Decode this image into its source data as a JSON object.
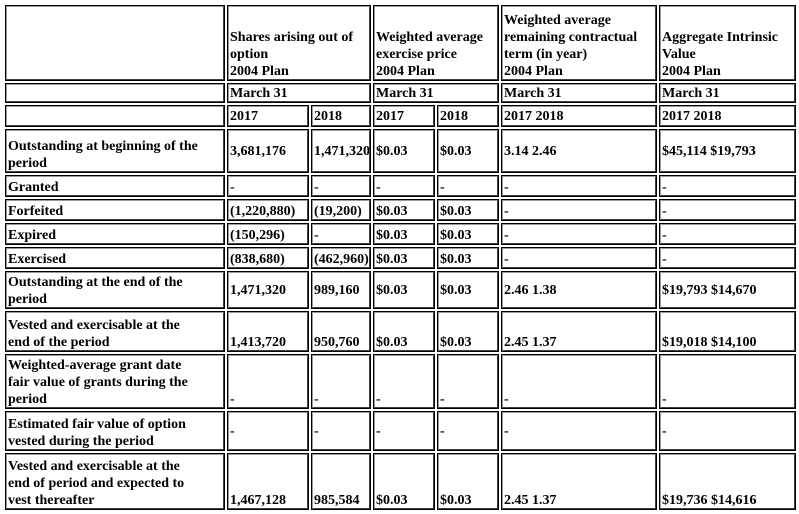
{
  "header": {
    "shares": [
      "Shares arising out of",
      "option",
      "2004 Plan"
    ],
    "price": [
      "Weighted average",
      "exercise price",
      "2004 Plan"
    ],
    "term": [
      "Weighted average",
      "remaining contractual",
      "term (in year)",
      "2004 Plan"
    ],
    "intrinsic": [
      "Aggregate Intrinsic",
      "Value",
      "2004 Plan"
    ]
  },
  "date_label": "March 31",
  "years": {
    "y2017": "2017",
    "y2018": "2018",
    "both": "2017 2018"
  },
  "rows": [
    {
      "label": [
        "Outstanding at beginning of the",
        "period"
      ],
      "s17": "3,681,176",
      "s18": "1,471,320",
      "p17": "$0.03",
      "p18": "$0.03",
      "term": "3.14 2.46",
      "intrinsic": "$45,114 $19,793"
    },
    {
      "label": [
        "Granted"
      ],
      "s17": "-",
      "s18": "-",
      "p17": "-",
      "p18": "-",
      "term": "-",
      "intrinsic": "-"
    },
    {
      "label": [
        "Forfeited"
      ],
      "s17": "(1,220,880)",
      "s18": "(19,200)",
      "p17": "$0.03",
      "p18": "$0.03",
      "term": "-",
      "intrinsic": "-"
    },
    {
      "label": [
        "Expired"
      ],
      "s17": "(150,296)",
      "s18": "-",
      "p17": "$0.03",
      "p18": "$0.03",
      "term": "-",
      "intrinsic": "-"
    },
    {
      "label": [
        "Exercised"
      ],
      "s17": "(838,680)",
      "s18": "(462,960)",
      "p17": "$0.03",
      "p18": "$0.03",
      "term": "-",
      "intrinsic": "-"
    },
    {
      "label": [
        "Outstanding at the end of the",
        "period"
      ],
      "s17": "1,471,320",
      "s18": "989,160",
      "p17": "$0.03",
      "p18": "$0.03",
      "term": "2.46 1.38",
      "intrinsic": "$19,793 $14,670"
    },
    {
      "label": [
        "Vested and exercisable at the",
        "end of the period"
      ],
      "s17": "1,413,720",
      "s18": "950,760",
      "p17": "$0.03",
      "p18": "$0.03",
      "term": "2.45 1.37",
      "intrinsic": "$19,018 $14,100"
    },
    {
      "label": [
        "Weighted-average grant date",
        "fair value of grants during the",
        "period"
      ],
      "s17": "-",
      "s18": "-",
      "p17": "-",
      "p18": "-",
      "term": "-",
      "intrinsic": "-"
    },
    {
      "label": [
        "Estimated fair value of option",
        "vested during the period"
      ],
      "s17": "-",
      "s18": "-",
      "p17": "-",
      "p18": "-",
      "term": "-",
      "intrinsic": "-"
    },
    {
      "label": [
        "Vested and exercisable at the",
        "end of period and expected to",
        "vest thereafter"
      ],
      "s17": "1,467,128",
      "s18": "985,584",
      "p17": "$0.03",
      "p18": "$0.03",
      "term": "2.45 1.37",
      "intrinsic": "$19,736 $14,616"
    }
  ]
}
